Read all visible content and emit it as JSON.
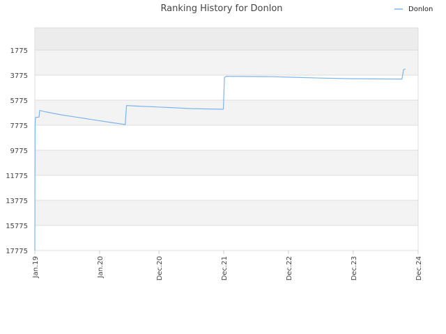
{
  "chart_data": {
    "type": "line",
    "title": "Ranking History for Donlon",
    "xlabel": "",
    "ylabel": "",
    "y_inverted": true,
    "ylim": [
      17775,
      0
    ],
    "yticks": [
      1775,
      3775,
      5775,
      7775,
      9775,
      11775,
      13775,
      15775,
      17775
    ],
    "ytick_labels": [
      "1775",
      "3775",
      "5775",
      "7775",
      "9775",
      "11775",
      "13775",
      "15775",
      "17775"
    ],
    "xlim": [
      "2019-01",
      "2024-12"
    ],
    "xticks": [
      "2019-01",
      "2020-01",
      "2020-12",
      "2021-12",
      "2022-12",
      "2023-12",
      "2024-12"
    ],
    "xtick_labels": [
      "Jan.19",
      "Jan.20",
      "Dec.20",
      "Dec.21",
      "Dec.22",
      "Dec.23",
      "Dec.24"
    ],
    "grid": true,
    "legend": {
      "position": "top-right",
      "entries": [
        "Donlon"
      ]
    },
    "series": [
      {
        "name": "Donlon",
        "color": "#7cb5ec",
        "points": [
          [
            "2019-01-01",
            17775
          ],
          [
            "2019-01-02",
            7775
          ],
          [
            "2019-01-05",
            7155
          ],
          [
            "2019-01-25",
            7120
          ],
          [
            "2019-01-28",
            6600
          ],
          [
            "2019-03-01",
            6700
          ],
          [
            "2019-06-01",
            6950
          ],
          [
            "2019-09-01",
            7150
          ],
          [
            "2019-12-01",
            7350
          ],
          [
            "2020-03-01",
            7550
          ],
          [
            "2020-05-25",
            7720
          ],
          [
            "2020-05-26",
            7350
          ],
          [
            "2020-06-01",
            6200
          ],
          [
            "2020-08-01",
            6250
          ],
          [
            "2020-12-01",
            6320
          ],
          [
            "2021-06-01",
            6450
          ],
          [
            "2021-11-29",
            6500
          ],
          [
            "2021-11-30",
            6000
          ],
          [
            "2021-12-05",
            3960
          ],
          [
            "2021-12-15",
            3870
          ],
          [
            "2022-04-01",
            3885
          ],
          [
            "2022-09-01",
            3900
          ],
          [
            "2022-12-01",
            3940
          ],
          [
            "2023-06-01",
            4010
          ],
          [
            "2023-12-01",
            4060
          ],
          [
            "2024-06-01",
            4085
          ],
          [
            "2024-09-01",
            4090
          ],
          [
            "2024-09-10",
            3340
          ],
          [
            "2024-09-20",
            3290
          ]
        ]
      }
    ]
  }
}
